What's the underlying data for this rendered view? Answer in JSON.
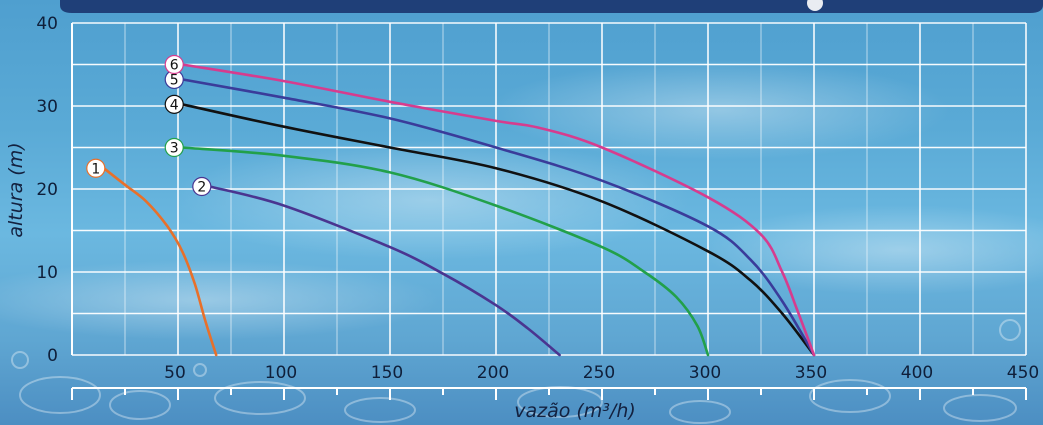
{
  "chart_data": {
    "type": "line",
    "title": "",
    "xlabel": "vazão (m³/h)",
    "ylabel": "altura (m)",
    "xlim": [
      0,
      450
    ],
    "ylim": [
      0,
      40
    ],
    "x_ticks": [
      "50",
      "100",
      "150",
      "200",
      "250",
      "300",
      "350",
      "400",
      "450"
    ],
    "y_ticks": [
      "0",
      "10",
      "20",
      "30",
      "40"
    ],
    "grid": true,
    "legend": "numbered markers at curve starts",
    "series": [
      {
        "name": "1",
        "color": "#e8702a",
        "x": [
          15,
          25,
          35,
          45,
          52,
          58,
          63,
          68
        ],
        "y": [
          22.5,
          20.5,
          18.5,
          15.5,
          12.5,
          8.5,
          4,
          0
        ]
      },
      {
        "name": "2",
        "color": "#4a3590",
        "x": [
          65,
          100,
          150,
          175,
          200,
          215,
          230
        ],
        "y": [
          20.3,
          18,
          13,
          9.8,
          6,
          3.2,
          0
        ]
      },
      {
        "name": "3",
        "color": "#22a04a",
        "x": [
          52,
          100,
          150,
          200,
          250,
          270,
          285,
          295,
          300
        ],
        "y": [
          25,
          24,
          22,
          18,
          13,
          10,
          7,
          3.5,
          0
        ]
      },
      {
        "name": "4",
        "color": "#111111",
        "x": [
          52,
          100,
          150,
          200,
          250,
          300,
          320,
          335,
          350
        ],
        "y": [
          30.2,
          27.5,
          25,
          22.5,
          18.5,
          12.5,
          9,
          5,
          0
        ]
      },
      {
        "name": "5",
        "color": "#3a3c9a",
        "x": [
          52,
          100,
          150,
          200,
          250,
          300,
          320,
          335,
          350
        ],
        "y": [
          33.2,
          31,
          28.5,
          25,
          21,
          15.5,
          11.5,
          6.5,
          0
        ]
      },
      {
        "name": "6",
        "color": "#d63c8e",
        "x": [
          52,
          100,
          150,
          200,
          220,
          250,
          300,
          325,
          335,
          342,
          350
        ],
        "y": [
          35,
          33,
          30.5,
          28.2,
          27.4,
          25,
          19,
          14.5,
          10,
          5.5,
          0
        ]
      }
    ]
  }
}
